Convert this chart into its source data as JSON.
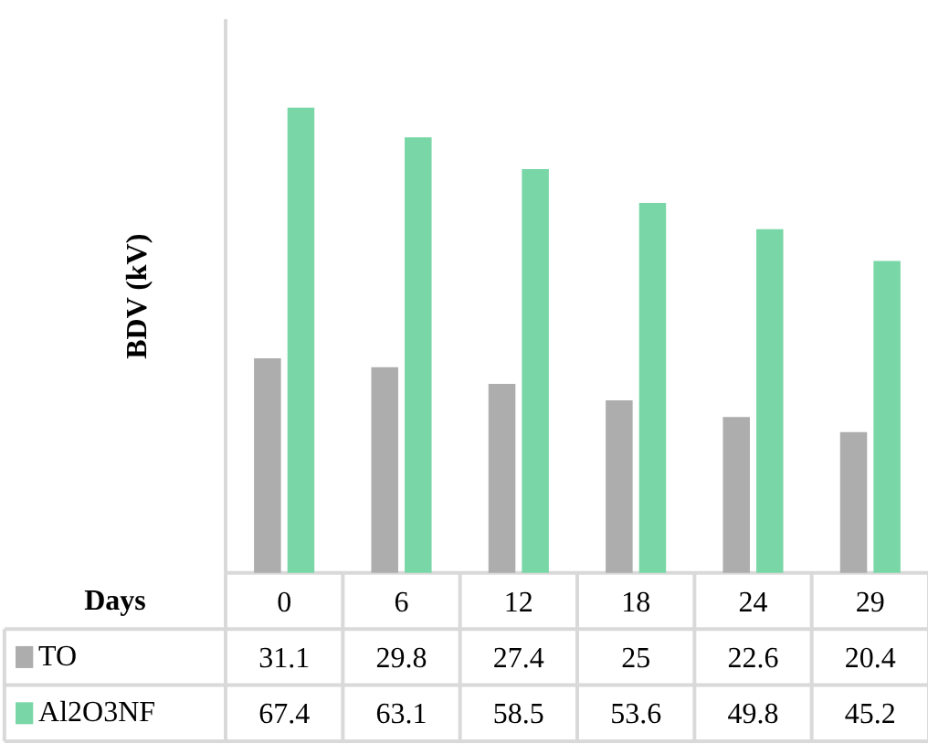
{
  "chart_data": {
    "type": "bar",
    "xlabel": "Days",
    "ylabel": "BDV (kV)",
    "categories": [
      "0",
      "6",
      "12",
      "18",
      "24",
      "29"
    ],
    "series": [
      {
        "name": "TO",
        "color": "#adadad",
        "values": [
          31.1,
          29.8,
          27.4,
          25,
          22.6,
          20.4
        ]
      },
      {
        "name": "Al2O3NF",
        "color": "#79d7a7",
        "values": [
          67.4,
          63.1,
          58.5,
          53.6,
          49.8,
          45.2
        ]
      }
    ],
    "legend": "bottom",
    "data_labels": true
  }
}
